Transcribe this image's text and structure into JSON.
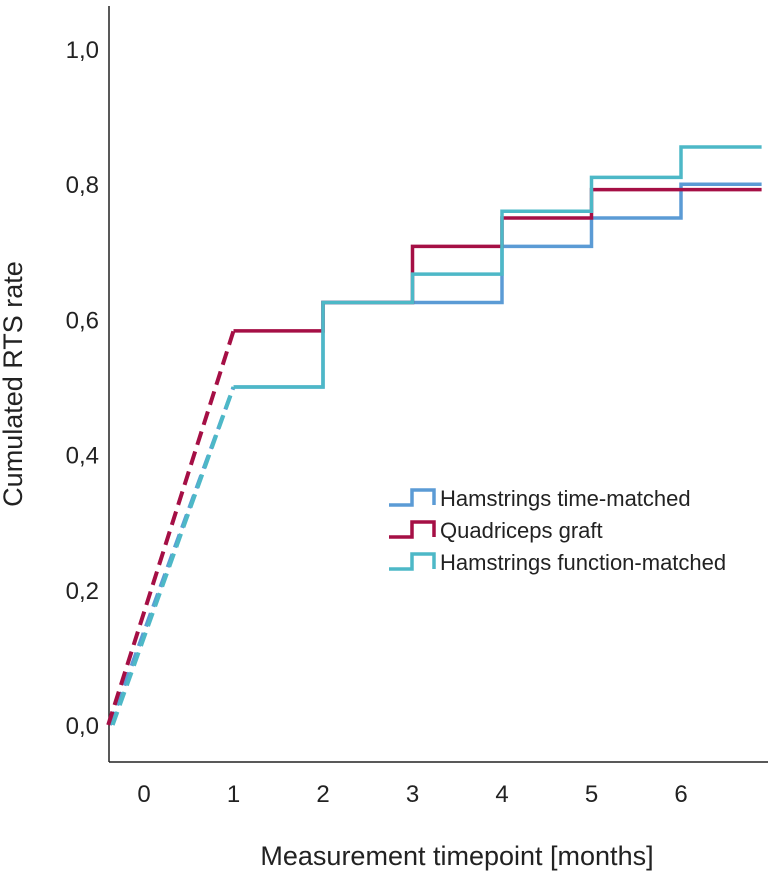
{
  "chart_data": {
    "type": "line",
    "title": "",
    "xlabel": "Measurement timepoint [months]",
    "ylabel": "Cumulated RTS rate",
    "xlim": [
      -0.4,
      6.9
    ],
    "ylim": [
      -0.05,
      1.06
    ],
    "x_ticks": [
      {
        "value": 0,
        "label": "0"
      },
      {
        "value": 1,
        "label": "1"
      },
      {
        "value": 2,
        "label": "2"
      },
      {
        "value": 3,
        "label": "3"
      },
      {
        "value": 4,
        "label": "4"
      },
      {
        "value": 5,
        "label": "5"
      },
      {
        "value": 6,
        "label": "6"
      }
    ],
    "y_ticks": [
      {
        "value": 0.0,
        "label": "0,0"
      },
      {
        "value": 0.2,
        "label": "0,2"
      },
      {
        "value": 0.4,
        "label": "0,4"
      },
      {
        "value": 0.6,
        "label": "0,6"
      },
      {
        "value": 0.8,
        "label": "0,8"
      },
      {
        "value": 1.0,
        "label": "1,0"
      }
    ],
    "legend_position": "center-right",
    "series": [
      {
        "name": "Hamstrings time-matched",
        "color": "#5b9bd5",
        "dashed_segment": [
          [
            -0.38,
            0.0
          ],
          [
            1.0,
            0.5
          ]
        ],
        "steps": [
          [
            1.0,
            0.5
          ],
          [
            2.0,
            0.5
          ],
          [
            2.0,
            0.625
          ],
          [
            4.0,
            0.625
          ],
          [
            4.0,
            0.708
          ],
          [
            5.0,
            0.708
          ],
          [
            5.0,
            0.75
          ],
          [
            6.0,
            0.75
          ],
          [
            6.0,
            0.8
          ],
          [
            6.9,
            0.8
          ]
        ]
      },
      {
        "name": "Quadriceps graft",
        "color": "#a50f45",
        "dashed_segment": [
          [
            -0.4,
            0.0
          ],
          [
            1.0,
            0.583
          ]
        ],
        "steps": [
          [
            1.0,
            0.583
          ],
          [
            2.0,
            0.583
          ],
          [
            2.0,
            0.625
          ],
          [
            3.0,
            0.625
          ],
          [
            3.0,
            0.708
          ],
          [
            4.0,
            0.708
          ],
          [
            4.0,
            0.75
          ],
          [
            5.0,
            0.75
          ],
          [
            5.0,
            0.792
          ],
          [
            6.9,
            0.792
          ]
        ]
      },
      {
        "name": "Hamstrings function-matched",
        "color": "#4db8c7",
        "dashed_segment": [
          [
            -0.35,
            0.0
          ],
          [
            1.0,
            0.5
          ]
        ],
        "steps": [
          [
            1.0,
            0.5
          ],
          [
            2.0,
            0.5
          ],
          [
            2.0,
            0.625
          ],
          [
            3.0,
            0.625
          ],
          [
            3.0,
            0.667
          ],
          [
            4.0,
            0.667
          ],
          [
            4.0,
            0.76
          ],
          [
            5.0,
            0.76
          ],
          [
            5.0,
            0.81
          ],
          [
            6.0,
            0.81
          ],
          [
            6.0,
            0.855
          ],
          [
            6.9,
            0.855
          ]
        ]
      }
    ]
  }
}
